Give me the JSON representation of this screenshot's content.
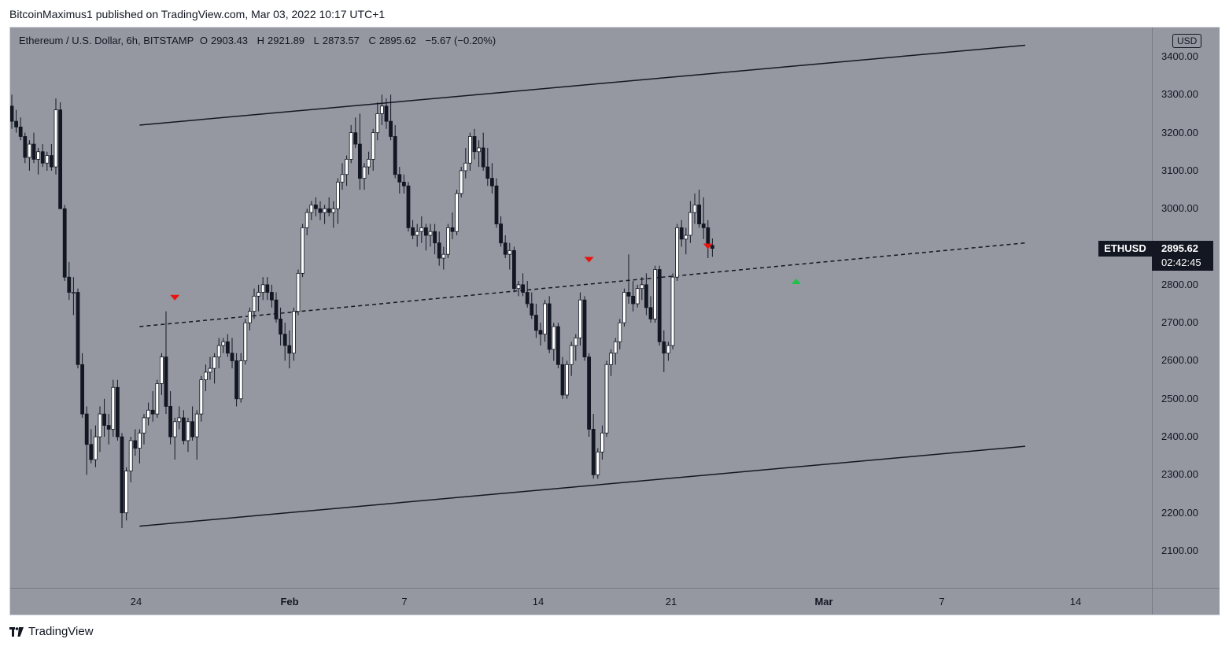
{
  "header": {
    "published_line": "BitcoinMaximus1 published on TradingView.com, Mar 03, 2022 10:17 UTC+1"
  },
  "legend": {
    "symbol": "Ethereum / U.S. Dollar, 6h, BITSTAMP",
    "open_label": "O",
    "open": "2903.43",
    "high_label": "H",
    "high": "2921.89",
    "low_label": "L",
    "low": "2873.57",
    "close_label": "C",
    "close": "2895.62",
    "change": "−5.67 (−0.20%)"
  },
  "price_axis": {
    "currency": "USD",
    "labels": [
      "3400.00",
      "3300.00",
      "3200.00",
      "3100.00",
      "3000.00",
      "2900.00",
      "2800.00",
      "2700.00",
      "2600.00",
      "2500.00",
      "2400.00",
      "2300.00",
      "2200.00",
      "2100.00"
    ]
  },
  "time_axis": {
    "labels": [
      "24",
      "Feb",
      "7",
      "14",
      "21",
      "Mar",
      "7",
      "14"
    ]
  },
  "last_price": {
    "symbol": "ETHUSD",
    "price": "2895.62",
    "countdown": "02:42:45"
  },
  "footer": {
    "brand": "TradingView",
    "logo_icon": "tradingview-logo-icon"
  },
  "colors": {
    "plot_bg": "#9598a1",
    "bull": "#ffffff",
    "bear": "#131722",
    "red_marker": "#e8140f",
    "green_marker": "#1fc14a"
  },
  "chart_data": {
    "type": "candlestick",
    "symbol": "ETHUSD",
    "interval": "6h",
    "ylim": [
      2050,
      3460
    ],
    "candles": [
      [
        3270,
        3300,
        3210,
        3230
      ],
      [
        3230,
        3260,
        3200,
        3215
      ],
      [
        3215,
        3240,
        3180,
        3190
      ],
      [
        3190,
        3200,
        3120,
        3135
      ],
      [
        3135,
        3180,
        3100,
        3170
      ],
      [
        3170,
        3200,
        3120,
        3130
      ],
      [
        3130,
        3160,
        3090,
        3150
      ],
      [
        3150,
        3170,
        3110,
        3120
      ],
      [
        3120,
        3150,
        3100,
        3140
      ],
      [
        3140,
        3170,
        3100,
        3110
      ],
      [
        3110,
        3290,
        3090,
        3260
      ],
      [
        3260,
        3280,
        3000,
        3000
      ],
      [
        3000,
        3010,
        2810,
        2820
      ],
      [
        2820,
        2860,
        2760,
        2780
      ],
      [
        2780,
        2820,
        2720,
        2780
      ],
      [
        2780,
        2790,
        2580,
        2590
      ],
      [
        2590,
        2620,
        2450,
        2460
      ],
      [
        2460,
        2480,
        2300,
        2380
      ],
      [
        2380,
        2420,
        2330,
        2340
      ],
      [
        2340,
        2430,
        2320,
        2400
      ],
      [
        2400,
        2480,
        2360,
        2460
      ],
      [
        2460,
        2500,
        2400,
        2430
      ],
      [
        2430,
        2460,
        2380,
        2420
      ],
      [
        2420,
        2550,
        2400,
        2530
      ],
      [
        2530,
        2550,
        2390,
        2400
      ],
      [
        2400,
        2410,
        2160,
        2200
      ],
      [
        2200,
        2320,
        2180,
        2310
      ],
      [
        2310,
        2400,
        2280,
        2390
      ],
      [
        2390,
        2420,
        2350,
        2370
      ],
      [
        2370,
        2420,
        2330,
        2410
      ],
      [
        2410,
        2460,
        2380,
        2450
      ],
      [
        2450,
        2490,
        2430,
        2470
      ],
      [
        2470,
        2520,
        2440,
        2460
      ],
      [
        2460,
        2550,
        2450,
        2540
      ],
      [
        2540,
        2620,
        2510,
        2610
      ],
      [
        2610,
        2730,
        2460,
        2480
      ],
      [
        2480,
        2520,
        2380,
        2400
      ],
      [
        2400,
        2450,
        2340,
        2440
      ],
      [
        2440,
        2480,
        2420,
        2450
      ],
      [
        2450,
        2470,
        2380,
        2390
      ],
      [
        2390,
        2450,
        2360,
        2440
      ],
      [
        2440,
        2480,
        2390,
        2400
      ],
      [
        2400,
        2470,
        2340,
        2460
      ],
      [
        2460,
        2560,
        2440,
        2550
      ],
      [
        2550,
        2590,
        2520,
        2570
      ],
      [
        2570,
        2610,
        2550,
        2580
      ],
      [
        2580,
        2620,
        2540,
        2610
      ],
      [
        2610,
        2660,
        2580,
        2640
      ],
      [
        2640,
        2660,
        2620,
        2650
      ],
      [
        2650,
        2670,
        2610,
        2620
      ],
      [
        2620,
        2660,
        2580,
        2600
      ],
      [
        2600,
        2620,
        2480,
        2500
      ],
      [
        2500,
        2620,
        2490,
        2600
      ],
      [
        2600,
        2710,
        2590,
        2700
      ],
      [
        2700,
        2740,
        2680,
        2730
      ],
      [
        2730,
        2790,
        2710,
        2770
      ],
      [
        2770,
        2800,
        2730,
        2780
      ],
      [
        2780,
        2820,
        2760,
        2800
      ],
      [
        2800,
        2820,
        2760,
        2780
      ],
      [
        2780,
        2800,
        2740,
        2760
      ],
      [
        2760,
        2780,
        2700,
        2710
      ],
      [
        2710,
        2740,
        2640,
        2670
      ],
      [
        2670,
        2700,
        2600,
        2640
      ],
      [
        2640,
        2680,
        2580,
        2620
      ],
      [
        2620,
        2740,
        2600,
        2730
      ],
      [
        2730,
        2840,
        2720,
        2830
      ],
      [
        2830,
        2960,
        2820,
        2950
      ],
      [
        2950,
        3000,
        2930,
        2990
      ],
      [
        2990,
        3020,
        2970,
        3010
      ],
      [
        3010,
        3030,
        2980,
        3000
      ],
      [
        3000,
        3020,
        2970,
        2990
      ],
      [
        2990,
        3010,
        2960,
        3000
      ],
      [
        3000,
        3030,
        2980,
        2990
      ],
      [
        2990,
        3020,
        2950,
        3000
      ],
      [
        3000,
        3080,
        2960,
        3070
      ],
      [
        3070,
        3120,
        3050,
        3090
      ],
      [
        3090,
        3140,
        3060,
        3130
      ],
      [
        3130,
        3220,
        3120,
        3200
      ],
      [
        3200,
        3240,
        3160,
        3170
      ],
      [
        3170,
        3250,
        3050,
        3080
      ],
      [
        3080,
        3120,
        3050,
        3110
      ],
      [
        3110,
        3150,
        3090,
        3130
      ],
      [
        3130,
        3210,
        3100,
        3200
      ],
      [
        3200,
        3280,
        3180,
        3250
      ],
      [
        3250,
        3300,
        3220,
        3270
      ],
      [
        3270,
        3290,
        3210,
        3230
      ],
      [
        3230,
        3300,
        3180,
        3190
      ],
      [
        3190,
        3220,
        3080,
        3090
      ],
      [
        3090,
        3110,
        3040,
        3070
      ],
      [
        3070,
        3090,
        3040,
        3060
      ],
      [
        3060,
        3070,
        2940,
        2950
      ],
      [
        2950,
        2970,
        2920,
        2930
      ],
      [
        2930,
        2960,
        2900,
        2940
      ],
      [
        2940,
        2980,
        2910,
        2950
      ],
      [
        2950,
        2960,
        2890,
        2930
      ],
      [
        2930,
        2960,
        2900,
        2940
      ],
      [
        2940,
        2960,
        2880,
        2910
      ],
      [
        2910,
        2940,
        2850,
        2870
      ],
      [
        2870,
        2900,
        2840,
        2880
      ],
      [
        2880,
        2960,
        2870,
        2950
      ],
      [
        2950,
        2990,
        2920,
        2940
      ],
      [
        2940,
        3050,
        2930,
        3040
      ],
      [
        3040,
        3110,
        3030,
        3100
      ],
      [
        3100,
        3160,
        3080,
        3120
      ],
      [
        3120,
        3200,
        3100,
        3190
      ],
      [
        3190,
        3210,
        3130,
        3150
      ],
      [
        3150,
        3180,
        3110,
        3160
      ],
      [
        3160,
        3200,
        3100,
        3110
      ],
      [
        3110,
        3160,
        3060,
        3080
      ],
      [
        3080,
        3120,
        3040,
        3060
      ],
      [
        3060,
        3080,
        2950,
        2960
      ],
      [
        2960,
        2980,
        2900,
        2910
      ],
      [
        2910,
        2930,
        2870,
        2880
      ],
      [
        2880,
        2910,
        2840,
        2890
      ],
      [
        2890,
        2900,
        2780,
        2790
      ],
      [
        2790,
        2810,
        2770,
        2800
      ],
      [
        2800,
        2830,
        2770,
        2780
      ],
      [
        2780,
        2810,
        2740,
        2750
      ],
      [
        2750,
        2780,
        2710,
        2720
      ],
      [
        2720,
        2750,
        2660,
        2680
      ],
      [
        2680,
        2700,
        2640,
        2670
      ],
      [
        2670,
        2760,
        2650,
        2750
      ],
      [
        2750,
        2770,
        2620,
        2630
      ],
      [
        2630,
        2700,
        2600,
        2690
      ],
      [
        2690,
        2700,
        2580,
        2590
      ],
      [
        2590,
        2610,
        2500,
        2510
      ],
      [
        2510,
        2600,
        2500,
        2590
      ],
      [
        2590,
        2650,
        2560,
        2640
      ],
      [
        2640,
        2670,
        2600,
        2660
      ],
      [
        2660,
        2780,
        2640,
        2760
      ],
      [
        2760,
        2770,
        2600,
        2610
      ],
      [
        2610,
        2620,
        2400,
        2420
      ],
      [
        2420,
        2460,
        2290,
        2300
      ],
      [
        2300,
        2370,
        2290,
        2360
      ],
      [
        2360,
        2430,
        2340,
        2410
      ],
      [
        2410,
        2600,
        2400,
        2590
      ],
      [
        2590,
        2630,
        2560,
        2620
      ],
      [
        2620,
        2660,
        2590,
        2650
      ],
      [
        2650,
        2710,
        2630,
        2700
      ],
      [
        2700,
        2790,
        2690,
        2780
      ],
      [
        2780,
        2880,
        2750,
        2770
      ],
      [
        2770,
        2810,
        2730,
        2750
      ],
      [
        2750,
        2800,
        2740,
        2790
      ],
      [
        2790,
        2820,
        2760,
        2800
      ],
      [
        2800,
        2830,
        2720,
        2740
      ],
      [
        2740,
        2770,
        2700,
        2710
      ],
      [
        2710,
        2850,
        2700,
        2840
      ],
      [
        2840,
        2850,
        2640,
        2650
      ],
      [
        2650,
        2680,
        2570,
        2620
      ],
      [
        2620,
        2650,
        2600,
        2640
      ],
      [
        2640,
        2830,
        2630,
        2820
      ],
      [
        2820,
        2960,
        2810,
        2950
      ],
      [
        2950,
        2970,
        2900,
        2920
      ],
      [
        2920,
        2950,
        2880,
        2930
      ],
      [
        2930,
        3020,
        2910,
        2990
      ],
      [
        2990,
        3040,
        2960,
        3010
      ],
      [
        3010,
        3050,
        2950,
        2960
      ],
      [
        2960,
        3030,
        2920,
        2950
      ],
      [
        2950,
        2970,
        2870,
        2900
      ],
      [
        2903.43,
        2921.89,
        2873.57,
        2895.62
      ]
    ],
    "trendlines": [
      {
        "kind": "solid",
        "role": "channel-resistance",
        "from": [
          29,
          3220
        ],
        "to": [
          230,
          3430
        ]
      },
      {
        "kind": "dashed",
        "role": "channel-midline",
        "from": [
          29,
          2690
        ],
        "to": [
          230,
          2910
        ]
      },
      {
        "kind": "solid",
        "role": "channel-support",
        "from": [
          29,
          2165
        ],
        "to": [
          230,
          2375
        ]
      }
    ],
    "markers": [
      {
        "type": "arrow-down",
        "color": "red",
        "index": 37,
        "price": 2765
      },
      {
        "type": "arrow-down",
        "color": "red",
        "index": 131,
        "price": 2865
      },
      {
        "type": "arrow-down",
        "color": "red",
        "index": 158,
        "price": 2900
      },
      {
        "type": "arrow-up",
        "color": "green",
        "index": 178,
        "price": 2810
      }
    ]
  }
}
